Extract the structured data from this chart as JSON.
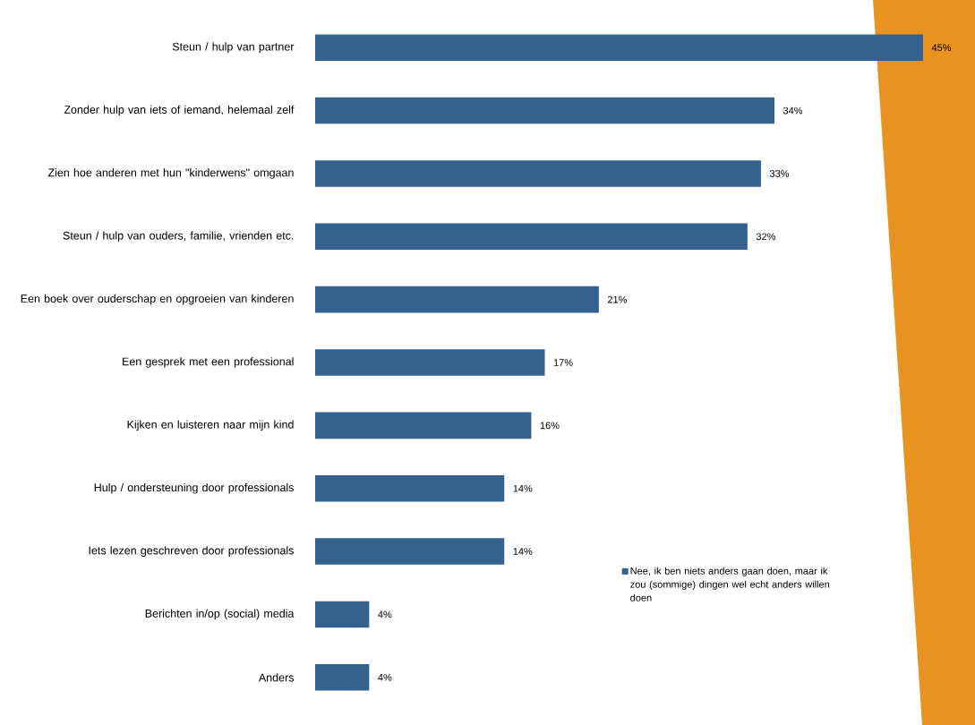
{
  "chart_data": {
    "type": "bar",
    "orientation": "horizontal",
    "categories": [
      "Steun / hulp van partner",
      "Zonder hulp van iets of iemand, helemaal zelf",
      "Zien hoe anderen met hun \"kinderwens\" omgaan",
      "Steun / hulp van ouders, familie, vrienden etc.",
      "Een boek over ouderschap en opgroeien van kinderen",
      "Een gesprek met een professional",
      "Kijken en luisteren naar mijn kind",
      "Hulp / ondersteuning door professionals",
      "Iets lezen geschreven door professionals",
      "Berichten in/op (social) media",
      "Anders"
    ],
    "series": [
      {
        "name": "Nee, ik ben niets anders gaan doen, maar ik zou (sommige) dingen wel echt anders willen doen",
        "color": "#35618f",
        "values": [
          45,
          34,
          33,
          32,
          21,
          17,
          16,
          14,
          14,
          4,
          4
        ],
        "value_labels": [
          "45%",
          "34%",
          "33%",
          "32%",
          "21%",
          "17%",
          "16%",
          "14%",
          "14%",
          "4%",
          "4%"
        ]
      }
    ],
    "xlim": [
      0,
      45
    ],
    "tick_labels": "y",
    "legend": "bottom right"
  }
}
